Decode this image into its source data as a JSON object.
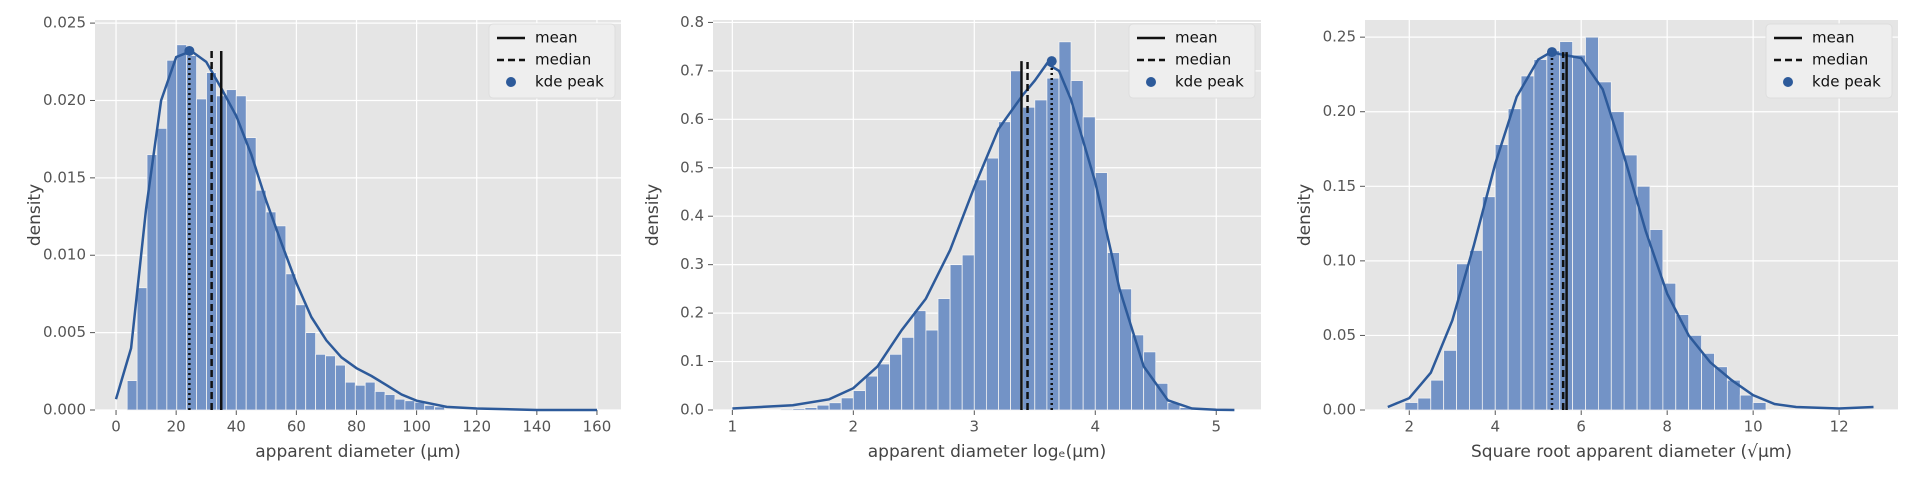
{
  "chart_data": [
    {
      "type": "histogram",
      "xlabel": "apparent diameter (μm)",
      "ylabel": "density",
      "bins": [
        3.7,
        7.0,
        10.3,
        13.6,
        16.9,
        20.2,
        23.5,
        26.8,
        30.1,
        33.4,
        36.7,
        40.0,
        43.3,
        46.6,
        49.9,
        53.2,
        56.5,
        59.8,
        63.1,
        66.4,
        69.7,
        73.0,
        76.3,
        79.6,
        82.9,
        86.2,
        89.5,
        92.8,
        96.1,
        99.4,
        102.7,
        106.0,
        109.3
      ],
      "values": [
        0.0019,
        0.0079,
        0.0165,
        0.0182,
        0.0226,
        0.0236,
        0.0229,
        0.0201,
        0.0218,
        0.0203,
        0.0207,
        0.0203,
        0.0176,
        0.0142,
        0.0128,
        0.0119,
        0.0088,
        0.0068,
        0.005,
        0.0036,
        0.0035,
        0.0029,
        0.0018,
        0.0016,
        0.0018,
        0.0012,
        0.001,
        0.0007,
        0.0006,
        0.0005,
        0.0003,
        0.0002
      ],
      "color": "#7393c6",
      "kde": {
        "color": "#2d5a9a",
        "x": [
          0,
          5,
          10,
          15,
          20,
          25,
          30,
          35,
          40,
          45,
          50,
          55,
          60,
          65,
          70,
          75,
          80,
          85,
          90,
          95,
          100,
          110,
          120,
          140,
          160
        ],
        "y": [
          0.0007,
          0.004,
          0.013,
          0.02,
          0.0228,
          0.0232,
          0.0225,
          0.0208,
          0.019,
          0.0165,
          0.0135,
          0.0108,
          0.0082,
          0.006,
          0.0045,
          0.0034,
          0.0027,
          0.0022,
          0.0016,
          0.001,
          0.0006,
          0.0002,
          0.0001,
          0.0,
          0.0
        ]
      },
      "mean": {
        "name": "mean",
        "value": 35.0
      },
      "median": {
        "name": "median",
        "value": 31.8
      },
      "kde_peak": {
        "name": "kde peak",
        "x": 24.4,
        "y": 0.0232
      },
      "xlim": [
        -7,
        168
      ],
      "ylim": [
        0,
        0.0252
      ],
      "xticks": [
        0,
        20,
        40,
        60,
        80,
        100,
        120,
        140,
        160
      ],
      "yticks": [
        {
          "value": 0,
          "label": "0.000"
        },
        {
          "value": 0.005,
          "label": "0.005"
        },
        {
          "value": 0.01,
          "label": "0.010"
        },
        {
          "value": 0.015,
          "label": "0.015"
        },
        {
          "value": 0.02,
          "label": "0.020"
        },
        {
          "value": 0.025,
          "label": "0.025"
        }
      ],
      "grid": true,
      "legend": "upper right"
    },
    {
      "type": "histogram",
      "xlabel": "apparent diameter logₑ(μm)",
      "ylabel": "density",
      "bins": [
        1.4,
        1.5,
        1.6,
        1.7,
        1.8,
        1.9,
        2.0,
        2.1,
        2.2,
        2.3,
        2.4,
        2.5,
        2.6,
        2.7,
        2.8,
        2.9,
        3.0,
        3.1,
        3.2,
        3.3,
        3.4,
        3.5,
        3.6,
        3.7,
        3.8,
        3.9,
        4.0,
        4.1,
        4.2,
        4.3,
        4.4,
        4.5,
        4.6,
        4.7,
        4.8
      ],
      "values": [
        0.002,
        0.003,
        0.005,
        0.01,
        0.015,
        0.025,
        0.04,
        0.07,
        0.095,
        0.115,
        0.15,
        0.205,
        0.165,
        0.23,
        0.3,
        0.32,
        0.475,
        0.52,
        0.595,
        0.7,
        0.625,
        0.64,
        0.685,
        0.76,
        0.68,
        0.605,
        0.49,
        0.325,
        0.25,
        0.155,
        0.12,
        0.055,
        0.015,
        0.005
      ],
      "color": "#7393c6",
      "kde": {
        "color": "#2d5a9a",
        "x": [
          1.0,
          1.5,
          1.8,
          2.0,
          2.2,
          2.4,
          2.6,
          2.8,
          3.0,
          3.2,
          3.4,
          3.5,
          3.6,
          3.7,
          3.8,
          4.0,
          4.2,
          4.4,
          4.6,
          4.8,
          5.0,
          5.15
        ],
        "y": [
          0.003,
          0.01,
          0.022,
          0.045,
          0.09,
          0.165,
          0.23,
          0.33,
          0.46,
          0.58,
          0.65,
          0.68,
          0.715,
          0.7,
          0.64,
          0.47,
          0.25,
          0.09,
          0.02,
          0.003,
          0.0005,
          0.0001
        ]
      },
      "mean": {
        "name": "mean",
        "value": 3.39
      },
      "median": {
        "name": "median",
        "value": 3.44
      },
      "kde_peak": {
        "name": "kde peak",
        "x": 3.64,
        "y": 0.72
      },
      "xlim": [
        0.84,
        5.37
      ],
      "ylim": [
        0,
        0.805
      ],
      "xticks": [
        1,
        2,
        3,
        4,
        5
      ],
      "yticks": [
        {
          "value": 0,
          "label": "0.0"
        },
        0.1,
        0.2,
        0.3,
        0.4,
        0.5,
        0.6,
        0.7,
        0.8
      ],
      "grid": true,
      "legend": "upper right"
    },
    {
      "type": "histogram",
      "xlabel": "Square root apparent diameter (√μm)",
      "ylabel": "density",
      "bins": [
        1.9,
        2.2,
        2.5,
        2.8,
        3.1,
        3.4,
        3.7,
        4.0,
        4.3,
        4.6,
        4.9,
        5.2,
        5.5,
        5.8,
        6.1,
        6.4,
        6.7,
        7.0,
        7.3,
        7.6,
        7.9,
        8.2,
        8.5,
        8.8,
        9.1,
        9.4,
        9.7,
        10.0,
        10.3
      ],
      "values": [
        0.005,
        0.008,
        0.02,
        0.04,
        0.098,
        0.107,
        0.143,
        0.178,
        0.202,
        0.224,
        0.235,
        0.241,
        0.247,
        0.238,
        0.25,
        0.22,
        0.2,
        0.171,
        0.15,
        0.121,
        0.085,
        0.064,
        0.05,
        0.038,
        0.029,
        0.02,
        0.01,
        0.005
      ],
      "color": "#7393c6",
      "kde": {
        "color": "#2d5a9a",
        "x": [
          1.5,
          2,
          2.5,
          3,
          3.5,
          4,
          4.5,
          5,
          5.3,
          5.6,
          6,
          6.5,
          7,
          7.5,
          8,
          8.5,
          9,
          9.5,
          10,
          10.5,
          11,
          12,
          12.8
        ],
        "y": [
          0.002,
          0.008,
          0.025,
          0.06,
          0.11,
          0.165,
          0.21,
          0.235,
          0.24,
          0.238,
          0.236,
          0.215,
          0.17,
          0.12,
          0.078,
          0.05,
          0.032,
          0.02,
          0.01,
          0.004,
          0.002,
          0.001,
          0.002
        ]
      },
      "mean": {
        "name": "mean",
        "value": 5.66
      },
      "median": {
        "name": "median",
        "value": 5.58
      },
      "kde_peak": {
        "name": "kde peak",
        "x": 5.32,
        "y": 0.24
      },
      "xlim": [
        0.97,
        13.37
      ],
      "ylim": [
        0,
        0.2615
      ],
      "xticks": [
        2,
        4,
        6,
        8,
        10,
        12
      ],
      "yticks": [
        {
          "value": 0,
          "label": "0.00"
        },
        0.05,
        {
          "value": 0.1,
          "label": "0.10"
        },
        0.15,
        {
          "value": 0.2,
          "label": "0.20"
        },
        0.25
      ],
      "grid": true,
      "legend": "upper right"
    }
  ]
}
